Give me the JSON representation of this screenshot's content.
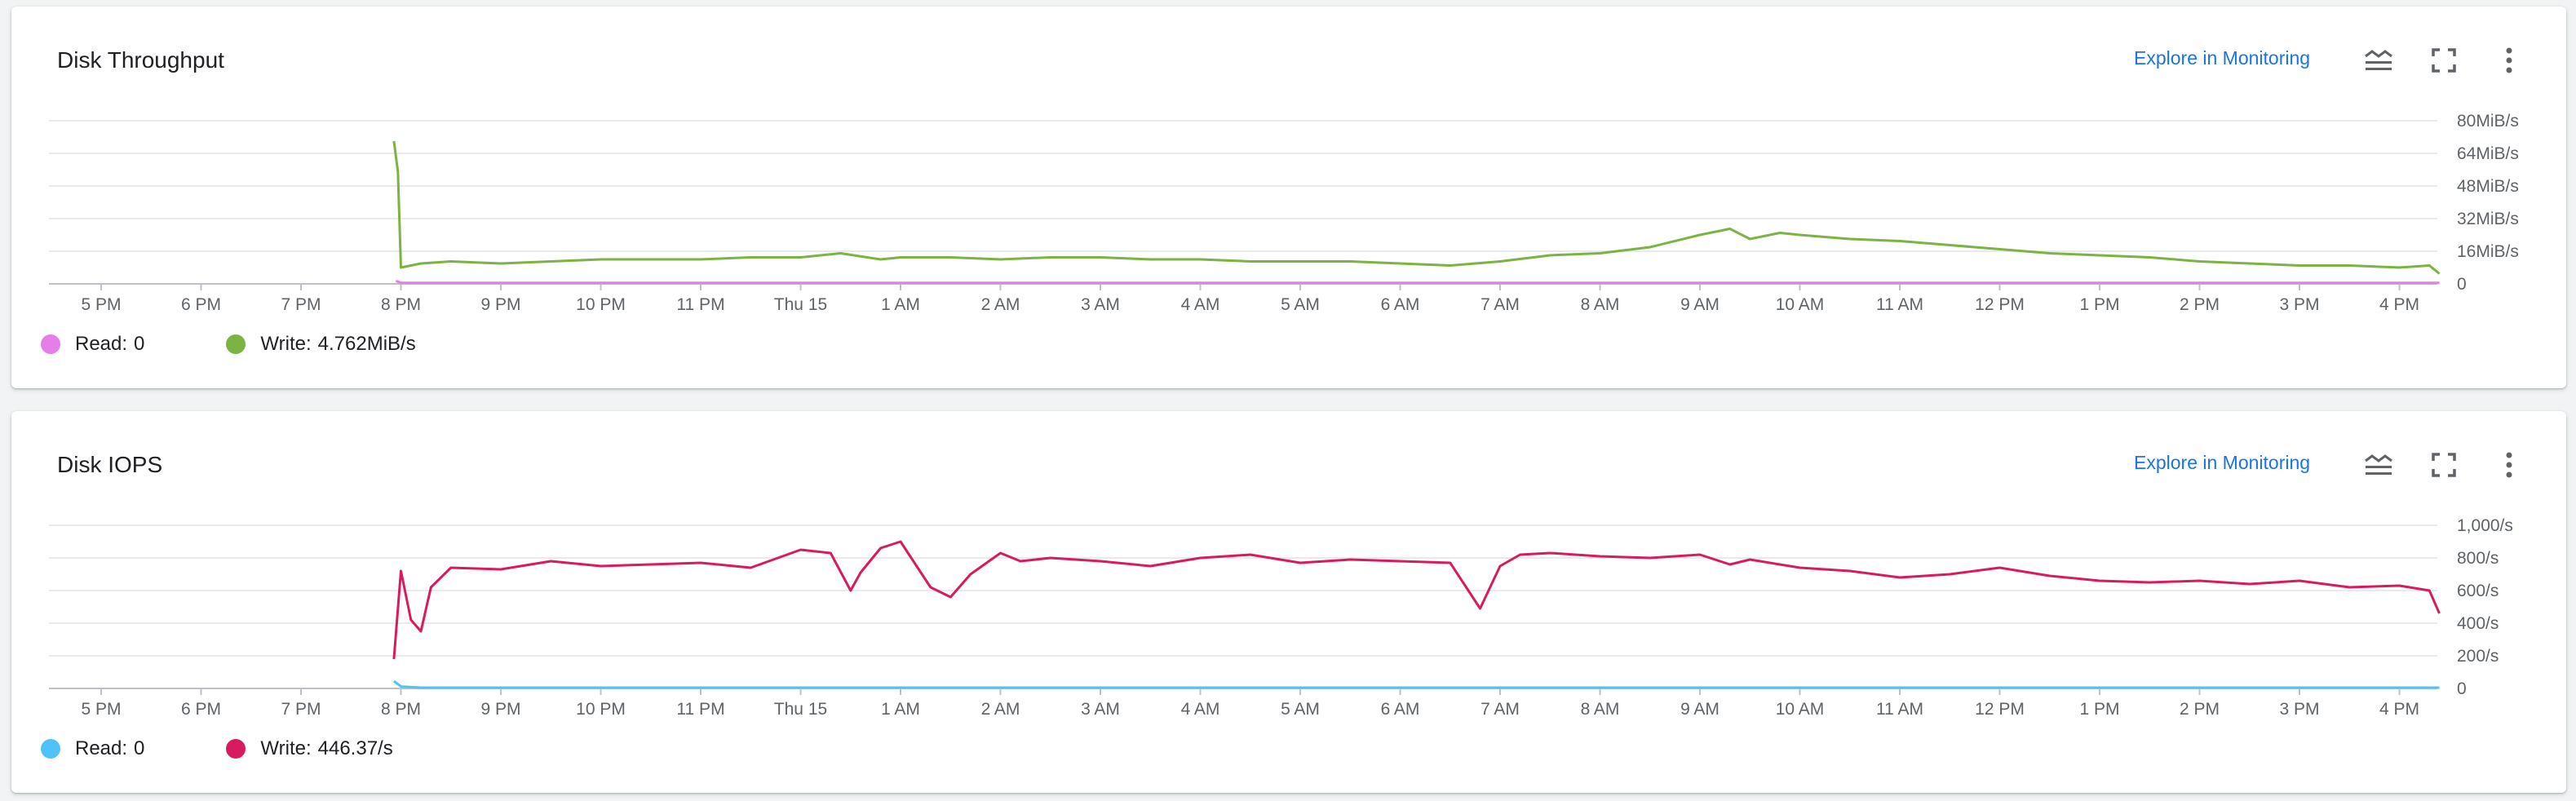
{
  "charts": [
    {
      "title": "Disk Throughput",
      "explore_label": "Explore in Monitoring",
      "icons": {
        "legend": "legend-toggle-icon",
        "fullscreen": "fullscreen-icon",
        "more": "more-vert-icon"
      },
      "legend": [
        {
          "label": "Read:",
          "value": "0",
          "color": "#e67ee9"
        },
        {
          "label": "Write:",
          "value": "4.762MiB/s",
          "color": "#7cb342"
        }
      ]
    },
    {
      "title": "Disk IOPS",
      "explore_label": "Explore in Monitoring",
      "icons": {
        "legend": "legend-toggle-icon",
        "fullscreen": "fullscreen-icon",
        "more": "more-vert-icon"
      },
      "legend": [
        {
          "label": "Read:",
          "value": "0",
          "color": "#4fc3f7"
        },
        {
          "label": "Write:",
          "value": "446.37/s",
          "color": "#d81b60"
        }
      ]
    }
  ],
  "chart_data": [
    {
      "type": "line",
      "title": "Disk Throughput",
      "x_tick_labels": [
        "5 PM",
        "6 PM",
        "7 PM",
        "8 PM",
        "9 PM",
        "10 PM",
        "11 PM",
        "Thu 15",
        "1 AM",
        "2 AM",
        "3 AM",
        "4 AM",
        "5 AM",
        "6 AM",
        "7 AM",
        "8 AM",
        "9 AM",
        "10 AM",
        "11 AM",
        "12 PM",
        "1 PM",
        "2 PM",
        "3 PM",
        "4 PM"
      ],
      "x_unit": "hours from 5 PM",
      "xlim": [
        -0.5,
        23.4
      ],
      "y_unit": "MiB/s",
      "y_ticks": [
        0,
        16,
        32,
        48,
        64,
        80
      ],
      "y_tick_labels": [
        "0",
        "16MiB/s",
        "32MiB/s",
        "48MiB/s",
        "64MiB/s",
        "80MiB/s"
      ],
      "ylim": [
        0,
        80
      ],
      "grid": true,
      "legend_position": "bottom-left",
      "series": [
        {
          "name": "Read",
          "color": "#e67ee9",
          "x": [
            2.95,
            3.0,
            23.4
          ],
          "y": [
            1.5,
            0.5,
            0.5
          ]
        },
        {
          "name": "Write",
          "color": "#7cb342",
          "x": [
            2.93,
            2.97,
            3.0,
            3.2,
            3.5,
            4,
            4.5,
            5,
            5.5,
            6,
            6.5,
            7,
            7.4,
            7.8,
            8,
            8.5,
            9,
            9.5,
            10,
            10.5,
            11,
            11.5,
            12,
            12.5,
            13,
            13.5,
            14,
            14.5,
            15,
            15.5,
            16,
            16.3,
            16.5,
            16.8,
            17,
            17.5,
            18,
            18.5,
            19,
            19.5,
            20,
            20.5,
            21,
            21.5,
            22,
            22.5,
            23,
            23.3,
            23.4
          ],
          "y": [
            70,
            55,
            8,
            10,
            11,
            10,
            11,
            12,
            12,
            12,
            13,
            13,
            15,
            12,
            13,
            13,
            12,
            13,
            13,
            12,
            12,
            11,
            11,
            11,
            10,
            9,
            11,
            14,
            15,
            18,
            24,
            27,
            22,
            25,
            24,
            22,
            21,
            19,
            17,
            15,
            14,
            13,
            11,
            10,
            9,
            9,
            8,
            9,
            5
          ]
        }
      ]
    },
    {
      "type": "line",
      "title": "Disk IOPS",
      "x_tick_labels": [
        "5 PM",
        "6 PM",
        "7 PM",
        "8 PM",
        "9 PM",
        "10 PM",
        "11 PM",
        "Thu 15",
        "1 AM",
        "2 AM",
        "3 AM",
        "4 AM",
        "5 AM",
        "6 AM",
        "7 AM",
        "8 AM",
        "9 AM",
        "10 AM",
        "11 AM",
        "12 PM",
        "1 PM",
        "2 PM",
        "3 PM",
        "4 PM"
      ],
      "x_unit": "hours from 5 PM",
      "xlim": [
        -0.5,
        23.4
      ],
      "y_unit": "ops/s",
      "y_ticks": [
        0,
        200,
        400,
        600,
        800,
        1000
      ],
      "y_tick_labels": [
        "0",
        "200/s",
        "400/s",
        "600/s",
        "800/s",
        "1,000/s"
      ],
      "ylim": [
        0,
        1000
      ],
      "grid": true,
      "legend_position": "bottom-left",
      "series": [
        {
          "name": "Read",
          "color": "#4fc3f7",
          "x": [
            2.93,
            3.0,
            3.2,
            23.4
          ],
          "y": [
            45,
            12,
            5,
            5
          ]
        },
        {
          "name": "Write",
          "color": "#d81b60",
          "x": [
            2.93,
            3.0,
            3.1,
            3.2,
            3.3,
            3.5,
            4,
            4.5,
            5,
            5.5,
            6,
            6.5,
            7,
            7.3,
            7.5,
            7.6,
            7.8,
            8,
            8.3,
            8.5,
            8.7,
            9,
            9.2,
            9.5,
            10,
            10.5,
            11,
            11.5,
            12,
            12.5,
            13,
            13.5,
            13.8,
            14,
            14.2,
            14.5,
            15,
            15.5,
            16,
            16.3,
            16.5,
            17,
            17.5,
            18,
            18.5,
            19,
            19.5,
            20,
            20.5,
            21,
            21.5,
            22,
            22.5,
            23,
            23.3,
            23.4
          ],
          "y": [
            180,
            720,
            420,
            350,
            620,
            740,
            730,
            780,
            750,
            760,
            770,
            740,
            850,
            830,
            600,
            710,
            860,
            900,
            620,
            560,
            700,
            830,
            780,
            800,
            780,
            750,
            800,
            820,
            770,
            790,
            780,
            770,
            490,
            750,
            820,
            830,
            810,
            800,
            820,
            760,
            790,
            740,
            720,
            680,
            700,
            740,
            690,
            660,
            650,
            660,
            640,
            660,
            620,
            630,
            600,
            460
          ]
        }
      ]
    }
  ]
}
